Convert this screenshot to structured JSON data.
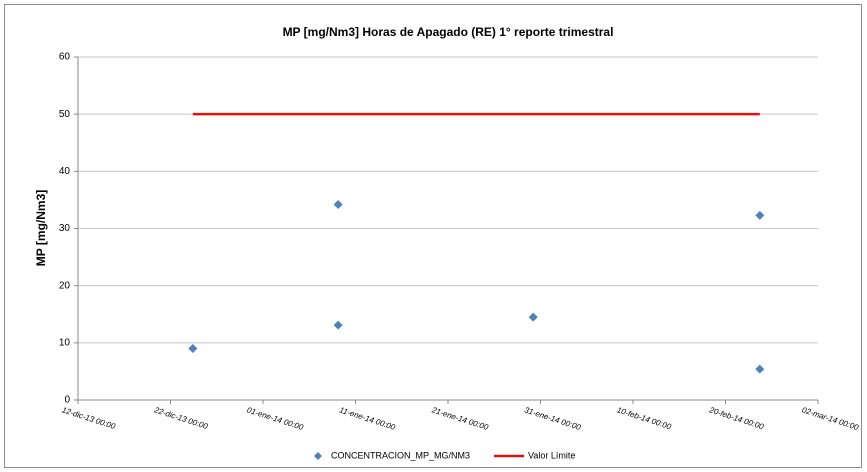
{
  "chart_data": {
    "type": "scatter",
    "title": "MP [mg/Nm3] Horas de Apagado (RE) 1° reporte trimestral",
    "ylabel": "MP [mg/Nm3]",
    "series": [
      {
        "name": "CONCENTRACION_MP_MG/NM3",
        "type": "scatter",
        "color": "#4f81bd",
        "x": [
          "2013-12-24T10:00",
          "2014-01-09T03:00",
          "2014-01-09T03:00",
          "2014-01-30T05:00",
          "2014-02-23T17:00",
          "2014-02-23T17:00"
        ],
        "values": [
          9,
          34.2,
          13.1,
          14.5,
          32.3,
          5.4
        ]
      },
      {
        "name": "Valor Límite",
        "type": "line",
        "color": "#e3120b",
        "x": [
          "2013-12-24T10:00",
          "2014-02-23T17:00"
        ],
        "values": [
          50,
          50
        ]
      }
    ],
    "xlim": [
      "2013-12-12T00:00",
      "2014-03-02T00:00"
    ],
    "xticks": [
      {
        "value": "2013-12-12T00:00",
        "label": "12-dic-13 00:00"
      },
      {
        "value": "2013-12-22T00:00",
        "label": "22-dic-13 00:00"
      },
      {
        "value": "2014-01-01T00:00",
        "label": "01-ene-14 00:00"
      },
      {
        "value": "2014-01-11T00:00",
        "label": "11-ene-14 00:00"
      },
      {
        "value": "2014-01-21T00:00",
        "label": "21-ene-14 00:00"
      },
      {
        "value": "2014-01-31T00:00",
        "label": "31-ene-14 00:00"
      },
      {
        "value": "2014-02-10T00:00",
        "label": "10-feb-14 00:00"
      },
      {
        "value": "2014-02-20T00:00",
        "label": "20-feb-14 00:00"
      },
      {
        "value": "2014-03-02T00:00",
        "label": "02-mar-14 00:00"
      }
    ],
    "ylim": [
      0,
      60
    ],
    "yticks": [
      0,
      10,
      20,
      30,
      40,
      50,
      60
    ],
    "grid": true,
    "legend": "bottom"
  }
}
